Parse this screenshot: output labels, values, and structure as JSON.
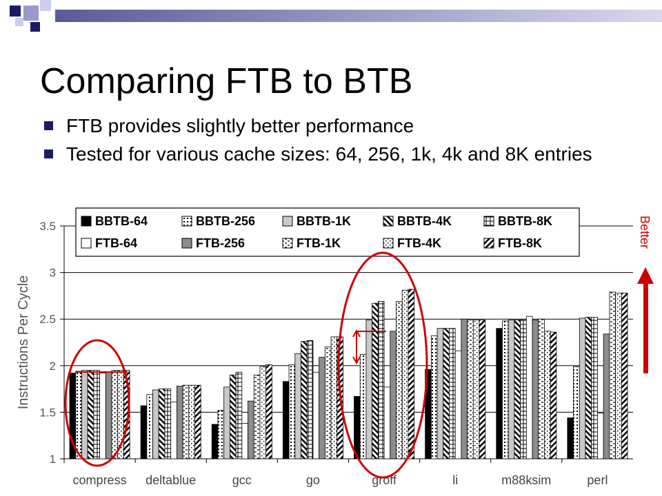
{
  "slide": {
    "title": "Comparing FTB to BTB",
    "bullets": [
      "FTB provides slightly better performance",
      "Tested for various cache sizes: 64, 256, 1k, 4k and 8K entries"
    ],
    "better_label": "Better",
    "colors": {
      "bullet": "#1a1a66",
      "accent": "#cc0000",
      "deco_dark": "#1a1a66",
      "deco_light": "#9999cc"
    }
  },
  "chart_data": {
    "type": "bar",
    "ylabel": "Instructions Per Cycle",
    "xlabel": "",
    "ylim": [
      1,
      3.5
    ],
    "yticks": [
      "1",
      "1.5",
      "2",
      "2.5",
      "3",
      "3.5"
    ],
    "grid": true,
    "legend_position": "top",
    "categories": [
      "compress",
      "deltablue",
      "gcc",
      "go",
      "groff",
      "li",
      "m88ksim",
      "perl"
    ],
    "series": [
      {
        "name": "BBTB-64",
        "pattern": "solid-black",
        "values": [
          1.92,
          1.57,
          1.37,
          1.83,
          1.67,
          1.96,
          2.4,
          1.44
        ]
      },
      {
        "name": "BBTB-256",
        "pattern": "dots",
        "values": [
          1.94,
          1.69,
          1.52,
          2.01,
          2.12,
          2.32,
          2.48,
          1.99
        ]
      },
      {
        "name": "BBTB-1K",
        "pattern": "solid-light",
        "values": [
          1.95,
          1.74,
          1.77,
          2.13,
          2.49,
          2.4,
          2.49,
          2.51
        ]
      },
      {
        "name": "BBTB-4K",
        "pattern": "hatch-back",
        "values": [
          1.95,
          1.75,
          1.9,
          2.26,
          2.67,
          2.4,
          2.49,
          2.52
        ]
      },
      {
        "name": "BBTB-8K",
        "pattern": "grid",
        "values": [
          1.95,
          1.75,
          1.93,
          2.27,
          2.69,
          2.4,
          2.49,
          2.52
        ]
      },
      {
        "name": "FTB-64",
        "pattern": "white",
        "values": [
          1.92,
          1.61,
          1.38,
          1.93,
          1.77,
          2.16,
          2.53,
          1.49
        ]
      },
      {
        "name": "FTB-256",
        "pattern": "solid-gray",
        "values": [
          1.93,
          1.78,
          1.62,
          2.09,
          2.37,
          2.5,
          2.49,
          2.34
        ]
      },
      {
        "name": "FTB-1K",
        "pattern": "dash",
        "values": [
          1.95,
          1.79,
          1.9,
          2.2,
          2.69,
          2.49,
          2.5,
          2.79
        ]
      },
      {
        "name": "FTB-4K",
        "pattern": "sparse-dots",
        "values": [
          1.95,
          1.79,
          1.99,
          2.31,
          2.81,
          2.49,
          2.37,
          2.78
        ]
      },
      {
        "name": "FTB-8K",
        "pattern": "hatch-fwd",
        "values": [
          1.95,
          1.79,
          2.01,
          2.31,
          2.82,
          2.49,
          2.36,
          2.78
        ]
      }
    ]
  }
}
